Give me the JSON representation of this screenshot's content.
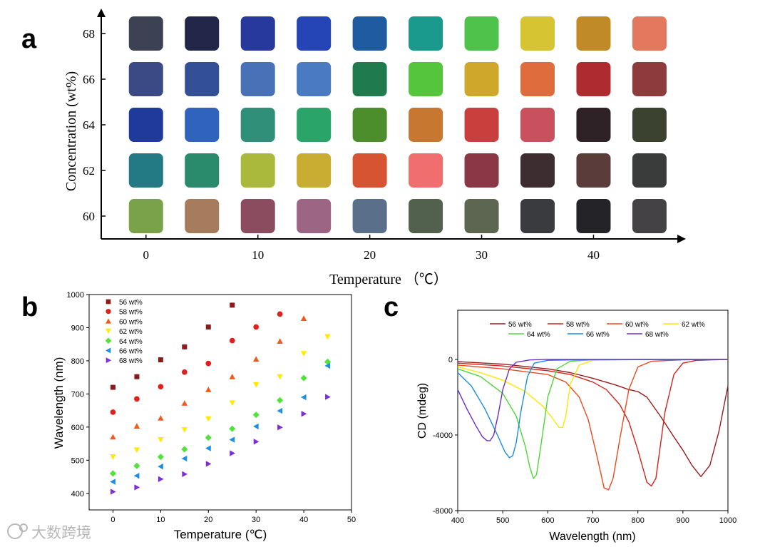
{
  "panel_labels": [
    "a",
    "b",
    "c"
  ],
  "watermark": "大数跨境",
  "chart_data": [
    {
      "panel": "a",
      "type": "heatmap",
      "title": "",
      "xlabel": "Temperature （℃）",
      "ylabel": "Concentration (wt%)",
      "x_ticks": [
        "0",
        "10",
        "20",
        "30",
        "40"
      ],
      "y_ticks": [
        "60",
        "62",
        "64",
        "66",
        "68"
      ],
      "x": [
        0,
        5,
        10,
        15,
        20,
        25,
        30,
        35,
        40,
        45
      ],
      "y": [
        68,
        66,
        64,
        62,
        60
      ],
      "xlim": [
        -4,
        48
      ],
      "ylim": [
        59,
        69
      ],
      "colors": [
        [
          "#3c4253",
          "#22274a",
          "#27399c",
          "#2545b7",
          "#1e5ba0",
          "#1a9a8c",
          "#4fc24b",
          "#d6c433",
          "#c08a27",
          "#e3785f"
        ],
        [
          "#3b4a84",
          "#334f96",
          "#4871b8",
          "#4a7ac2",
          "#1f7a4d",
          "#55c63b",
          "#cfa72a",
          "#df6c3d",
          "#ae2c30",
          "#8e3b3b"
        ],
        [
          "#203a9c",
          "#2f63be",
          "#2f8f78",
          "#2aa468",
          "#4c8e2c",
          "#c7772f",
          "#c93f3e",
          "#c9505d",
          "#2e2226",
          "#3b4230"
        ],
        [
          "#237a85",
          "#2a8a6c",
          "#aab93b",
          "#c9ad32",
          "#d75433",
          "#f06f6e",
          "#8a3845",
          "#3e2d30",
          "#5a3c3a",
          "#3a3b3b"
        ],
        [
          "#7aa24a",
          "#a67c5c",
          "#8c4c5f",
          "#9c6583",
          "#5a6f8a",
          "#51614e",
          "#5c6650",
          "#3a3b3f",
          "#242428",
          "#454246"
        ]
      ]
    },
    {
      "panel": "b",
      "type": "scatter",
      "title": "",
      "xlabel": "Temperature (℃)",
      "ylabel": "Wavelength (nm)",
      "xlim": [
        -5,
        50
      ],
      "ylim": [
        350,
        1000
      ],
      "x_ticks": [
        "0",
        "10",
        "20",
        "30",
        "40",
        "50"
      ],
      "y_ticks": [
        "400",
        "500",
        "600",
        "700",
        "800",
        "900",
        "1000"
      ],
      "legend_position": "top-left",
      "series": [
        {
          "name": "56 wt%",
          "color": "#8b1a1a",
          "marker": "square",
          "x": [
            0,
            5,
            10,
            15,
            20,
            25
          ],
          "values": [
            720,
            752,
            803,
            842,
            902,
            968
          ]
        },
        {
          "name": "58 wt%",
          "color": "#e0201b",
          "marker": "circle",
          "x": [
            0,
            5,
            10,
            15,
            20,
            25,
            30,
            35
          ],
          "values": [
            645,
            685,
            722,
            766,
            792,
            861,
            902,
            941
          ]
        },
        {
          "name": "60 wt%",
          "color": "#f05a1e",
          "marker": "triangle-up",
          "x": [
            0,
            5,
            10,
            15,
            20,
            25,
            30,
            35,
            40
          ],
          "values": [
            570,
            603,
            627,
            672,
            713,
            752,
            805,
            859,
            928
          ]
        },
        {
          "name": "62 wt%",
          "color": "#ffea00",
          "marker": "triangle-down",
          "x": [
            0,
            5,
            10,
            15,
            20,
            25,
            30,
            35,
            40,
            45
          ],
          "values": [
            510,
            531,
            562,
            592,
            625,
            673,
            728,
            752,
            822,
            873
          ]
        },
        {
          "name": "64 wt%",
          "color": "#52e33a",
          "marker": "diamond",
          "x": [
            0,
            5,
            10,
            15,
            20,
            25,
            30,
            35,
            40,
            45
          ],
          "values": [
            460,
            483,
            510,
            533,
            568,
            595,
            637,
            681,
            748,
            797
          ]
        },
        {
          "name": "66 wt%",
          "color": "#1f8fe0",
          "marker": "triangle-left",
          "x": [
            0,
            5,
            10,
            15,
            20,
            25,
            30,
            35,
            40,
            45
          ],
          "values": [
            435,
            453,
            481,
            505,
            536,
            562,
            602,
            649,
            690,
            785
          ]
        },
        {
          "name": "68 wt%",
          "color": "#7b2fd6",
          "marker": "triangle-right",
          "x": [
            0,
            5,
            10,
            15,
            20,
            25,
            30,
            35,
            40,
            45
          ],
          "values": [
            405,
            418,
            443,
            458,
            489,
            521,
            556,
            599,
            640,
            691
          ]
        }
      ]
    },
    {
      "panel": "c",
      "type": "line",
      "title": "",
      "xlabel": "Wavelength (nm)",
      "ylabel": "CD (mdeg)",
      "xlim": [
        400,
        1000
      ],
      "ylim": [
        -8000,
        2600
      ],
      "x_ticks": [
        "400",
        "500",
        "600",
        "700",
        "800",
        "900",
        "1000"
      ],
      "y_ticks": [
        "-8000",
        "-4000",
        "0"
      ],
      "legend_position": "top",
      "series": [
        {
          "name": "56 wt%",
          "color": "#9b1c1c",
          "x": [
            400,
            500,
            600,
            650,
            700,
            750,
            780,
            800,
            820,
            850,
            880,
            900,
            920,
            940,
            960,
            980,
            1000
          ],
          "values": [
            -120,
            -250,
            -500,
            -700,
            -1000,
            -1350,
            -1600,
            -1700,
            -2000,
            -3000,
            -4100,
            -4800,
            -5600,
            -6200,
            -5600,
            -3800,
            -1400
          ]
        },
        {
          "name": "58 wt%",
          "color": "#d6231c",
          "x": [
            400,
            500,
            600,
            650,
            700,
            730,
            760,
            780,
            800,
            820,
            830,
            840,
            860,
            880,
            900,
            930,
            1000
          ],
          "values": [
            -200,
            -350,
            -600,
            -800,
            -1200,
            -1600,
            -2400,
            -3300,
            -4800,
            -6500,
            -6700,
            -6300,
            -2800,
            -800,
            -200,
            -50,
            0
          ]
        },
        {
          "name": "60 wt%",
          "color": "#ee4a1e",
          "x": [
            400,
            500,
            600,
            640,
            670,
            690,
            710,
            725,
            735,
            745,
            760,
            780,
            800,
            830,
            900,
            1000
          ],
          "values": [
            -300,
            -500,
            -800,
            -1200,
            -2000,
            -3200,
            -5200,
            -6800,
            -6900,
            -6300,
            -4200,
            -1600,
            -400,
            -100,
            -20,
            0
          ]
        },
        {
          "name": "62 wt%",
          "color": "#ffe600",
          "x": [
            400,
            450,
            500,
            550,
            590,
            610,
            625,
            633,
            640,
            650,
            670,
            700,
            800,
            1000
          ],
          "values": [
            -400,
            -700,
            -1100,
            -1700,
            -2500,
            -3100,
            -3600,
            -3600,
            -3000,
            -1300,
            -300,
            -50,
            -10,
            0
          ]
        },
        {
          "name": "64 wt%",
          "color": "#4fd83a",
          "x": [
            400,
            450,
            500,
            530,
            550,
            560,
            568,
            575,
            585,
            600,
            620,
            650,
            700,
            1000
          ],
          "values": [
            -500,
            -900,
            -1800,
            -3000,
            -4600,
            -5700,
            -6300,
            -6100,
            -4500,
            -2000,
            -500,
            -100,
            -20,
            0
          ]
        },
        {
          "name": "66 wt%",
          "color": "#1a8de0",
          "x": [
            400,
            430,
            460,
            490,
            505,
            515,
            522,
            530,
            540,
            555,
            570,
            600,
            700,
            1000
          ],
          "values": [
            -700,
            -1400,
            -2600,
            -4100,
            -4900,
            -5200,
            -5100,
            -4400,
            -2800,
            -900,
            -200,
            -50,
            -10,
            0
          ]
        },
        {
          "name": "68 wt%",
          "color": "#6a2ed0",
          "x": [
            400,
            420,
            440,
            455,
            465,
            472,
            480,
            490,
            500,
            515,
            530,
            560,
            600,
            1000
          ],
          "values": [
            -1600,
            -2600,
            -3500,
            -4100,
            -4300,
            -4300,
            -4000,
            -2900,
            -1600,
            -500,
            -150,
            -30,
            0,
            0
          ]
        }
      ]
    }
  ]
}
